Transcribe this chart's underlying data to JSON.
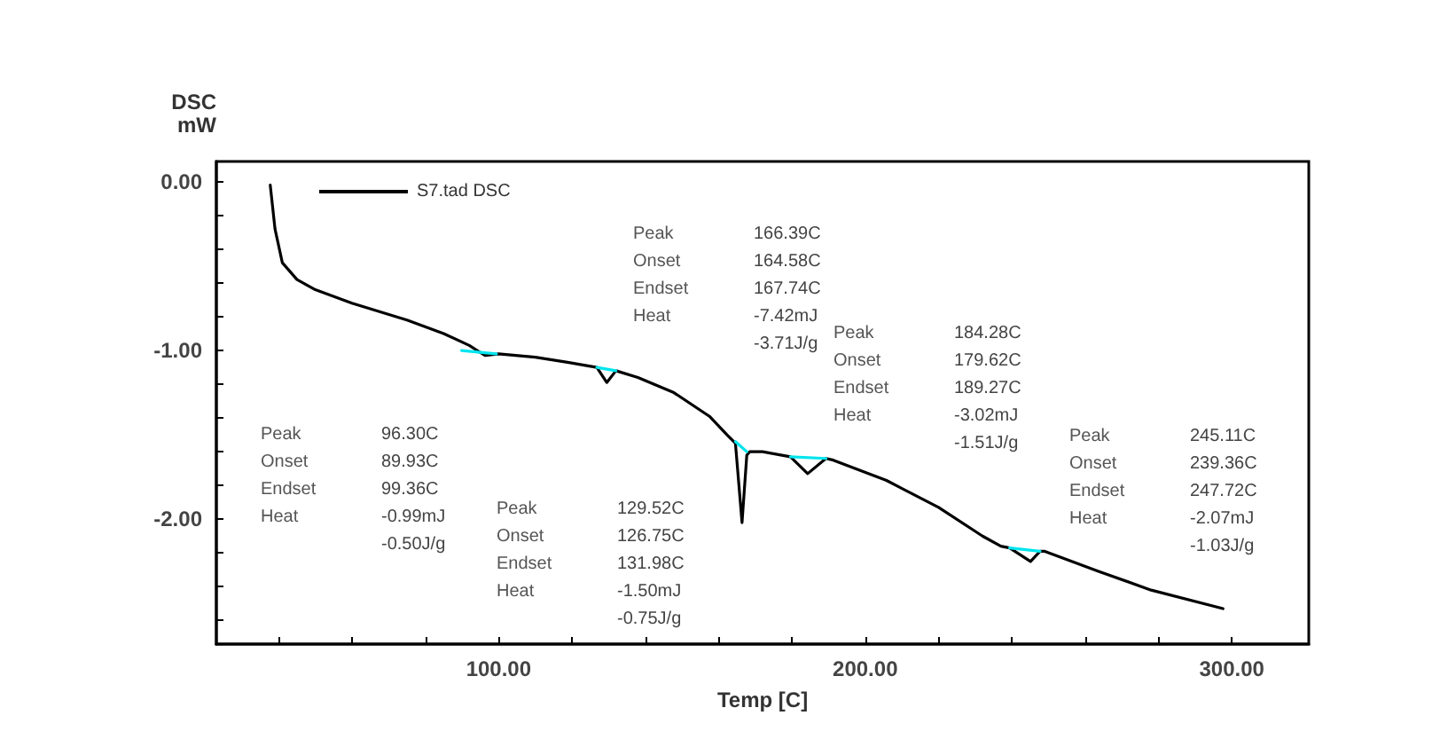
{
  "chart_data": {
    "type": "line",
    "ylabel": "DSC\nmW",
    "xlabel": "Temp [C]",
    "legend": "top left",
    "grid": false,
    "marker": "none",
    "line_style": "solid",
    "xlim": [
      23,
      321
    ],
    "ylim": [
      -2.74,
      0.12
    ],
    "xticks": [
      {
        "value": 40,
        "label": null
      },
      {
        "value": 60,
        "label": null
      },
      {
        "value": 80,
        "label": null
      },
      {
        "value": 100,
        "label": "100.00"
      },
      {
        "value": 120,
        "label": null
      },
      {
        "value": 140,
        "label": null
      },
      {
        "value": 160,
        "label": null
      },
      {
        "value": 180,
        "label": null
      },
      {
        "value": 200,
        "label": "200.00"
      },
      {
        "value": 220,
        "label": null
      },
      {
        "value": 240,
        "label": null
      },
      {
        "value": 260,
        "label": null
      },
      {
        "value": 280,
        "label": null
      },
      {
        "value": 300,
        "label": "300.00"
      }
    ],
    "yticks": [
      {
        "value": 0,
        "label": "0.00"
      },
      {
        "value": -0.2,
        "label": null
      },
      {
        "value": -0.4,
        "label": null
      },
      {
        "value": -0.6,
        "label": null
      },
      {
        "value": -0.8,
        "label": null
      },
      {
        "value": -1,
        "label": "-1.00"
      },
      {
        "value": -1.2,
        "label": null
      },
      {
        "value": -1.4,
        "label": null
      },
      {
        "value": -1.6,
        "label": null
      },
      {
        "value": -1.8,
        "label": null
      },
      {
        "value": -2,
        "label": "-2.00"
      },
      {
        "value": -2.2,
        "label": null
      },
      {
        "value": -2.4,
        "label": null
      },
      {
        "value": -2.6,
        "label": null
      }
    ],
    "series": [
      {
        "name": "S7.tad DSC",
        "color": "#000000",
        "x": [
          37.7,
          39,
          41,
          45,
          50,
          60,
          75,
          85,
          92,
          96.3,
          100,
          110,
          118.8,
          126.8,
          129.5,
          132,
          138,
          147.8,
          157.5,
          162.3,
          164.6,
          166.4,
          167.7,
          168.5,
          172,
          179.6,
          184.3,
          189.3,
          191.3,
          205.8,
          220,
          232,
          237,
          239.4,
          245.1,
          247.7,
          249,
          263.8,
          278,
          297.6
        ],
        "values": [
          -0.02,
          -0.28,
          -0.48,
          -0.58,
          -0.64,
          -0.72,
          -0.82,
          -0.9,
          -0.97,
          -1.03,
          -1.02,
          -1.04,
          -1.07,
          -1.1,
          -1.19,
          -1.12,
          -1.16,
          -1.25,
          -1.39,
          -1.5,
          -1.55,
          -2.02,
          -1.62,
          -1.6,
          -1.6,
          -1.63,
          -1.73,
          -1.64,
          -1.65,
          -1.77,
          -1.93,
          -2.1,
          -2.16,
          -2.17,
          -2.25,
          -2.19,
          -2.19,
          -2.31,
          -2.42,
          -2.53
        ]
      },
      {
        "color": "#00e5ee",
        "x": [
          89.9,
          99.4,
          null,
          126.8,
          132,
          null,
          164.6,
          167.7,
          null,
          179.6,
          189.3,
          null,
          239.4,
          247.7
        ],
        "values": [
          -1.0,
          -1.02,
          null,
          -1.1,
          -1.12,
          null,
          -1.54,
          -1.6,
          null,
          -1.63,
          -1.64,
          null,
          -2.17,
          -2.19
        ]
      }
    ],
    "annotations": [
      "Peak\t96.30C\nOnset\t89.93C\nEndset\t99.36C\nHeat\t-0.99mJ\n\t-0.50J/g",
      "Peak\t129.52C\nOnset\t126.75C\nEndset\t131.98C\nHeat\t-1.50mJ\n\t-0.75J/g",
      "Peak\t166.39C\nOnset\t164.58C\nEndset\t167.74C\nHeat\t-7.42mJ\n\t-3.71J/g",
      "Peak\t184.28C\nOnset\t179.62C\nEndset\t189.27C\nHeat\t-3.02mJ\n\t-1.51J/g",
      "Peak\t245.11C\nOnset\t239.36C\nEndset\t247.72C\nHeat\t-2.07mJ\n\t-1.03J/g"
    ]
  }
}
